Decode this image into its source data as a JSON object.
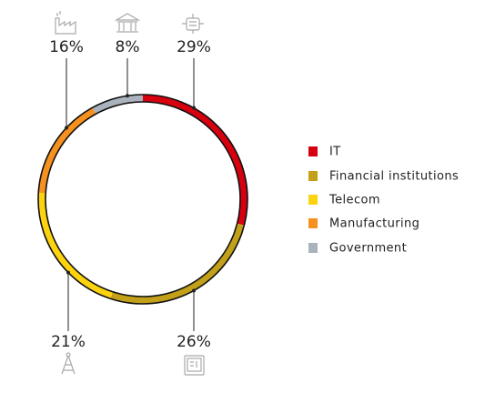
{
  "chart_data": {
    "type": "donut",
    "categories": [
      "IT",
      "Financial institutions",
      "Telecom",
      "Manufacturing",
      "Government"
    ],
    "values": [
      29,
      26,
      21,
      16,
      8
    ],
    "value_labels": [
      "29%",
      "26%",
      "21%",
      "16%",
      "8%"
    ],
    "colors": [
      "#d7000f",
      "#c2a019",
      "#fdd20e",
      "#f6901e",
      "#aab2bd"
    ],
    "start_angle": 0,
    "direction": "clockwise",
    "legend": "right"
  }
}
